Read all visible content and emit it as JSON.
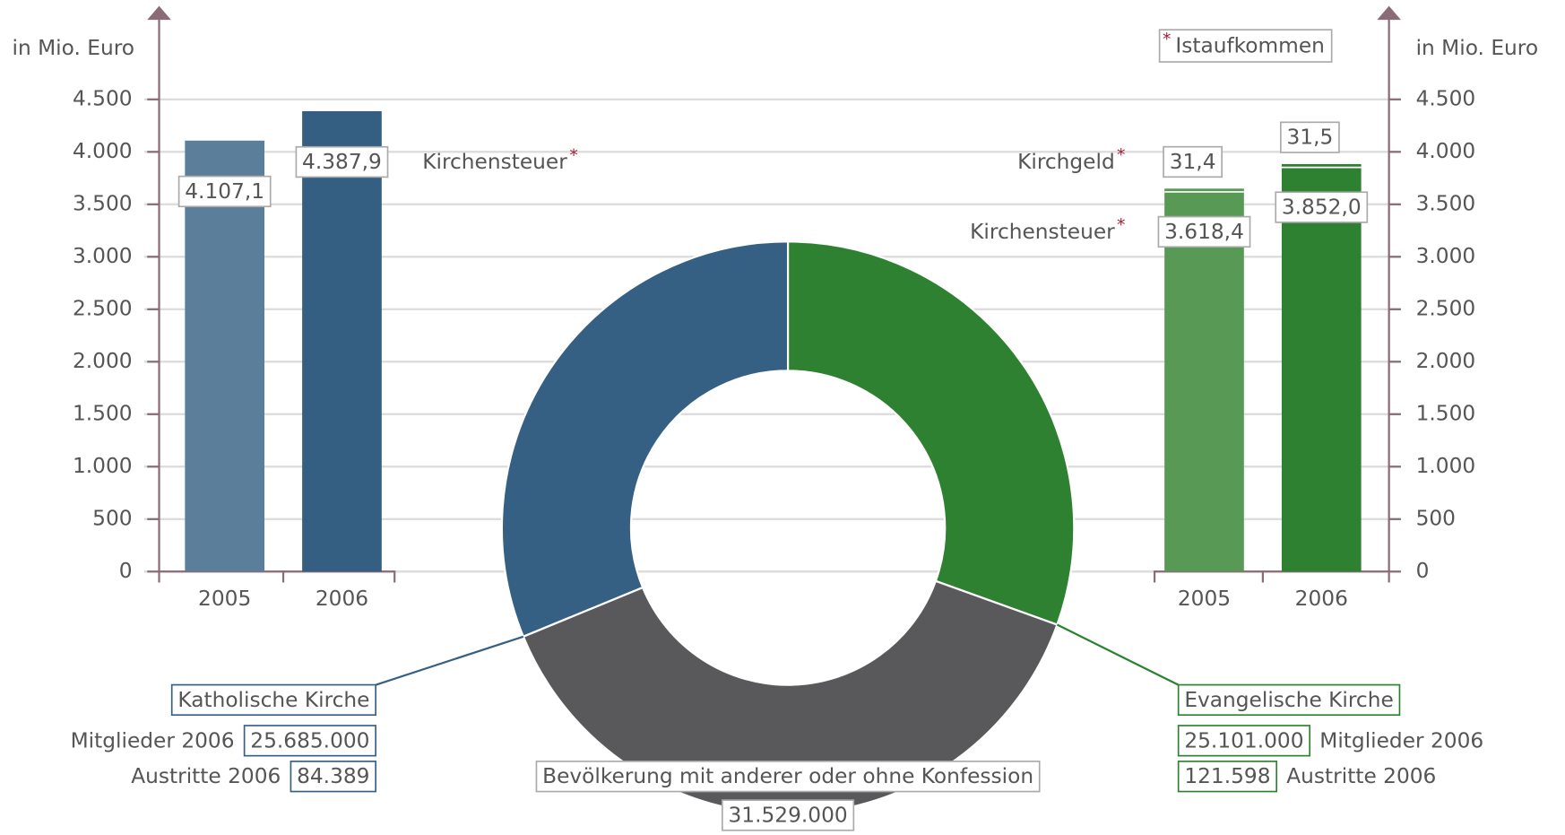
{
  "note": {
    "marker": "*",
    "text": "Istaufkommen"
  },
  "chart_data": [
    {
      "type": "bar",
      "y_label": "in Mio. Euro",
      "categories": [
        "2005",
        "2006"
      ],
      "series": [
        {
          "name": "Kirchensteuer",
          "colors": [
            "#5b7f9a",
            "#345f82"
          ],
          "values": [
            4107.1,
            4387.9
          ],
          "value_labels": [
            "4.107,1",
            "4.387,9"
          ]
        }
      ],
      "ylim": [
        0,
        4500
      ],
      "yticks": [
        0,
        500,
        {
          "value": 1000,
          "label": "1.000"
        },
        {
          "value": 1500,
          "label": "1.500"
        },
        {
          "value": 2000,
          "label": "2.000"
        },
        {
          "value": 2500,
          "label": "2.500"
        },
        {
          "value": 3000,
          "label": "3.000"
        },
        {
          "value": 3500,
          "label": "3.500"
        },
        {
          "value": 4000,
          "label": "4.000"
        },
        {
          "value": 4500,
          "label": "4.500"
        }
      ],
      "grid": true
    },
    {
      "type": "stacked_bar",
      "y_label": "in Mio. Euro",
      "categories": [
        "2005",
        "2006"
      ],
      "series": [
        {
          "name": "Kirchensteuer",
          "colors": [
            "#589a55",
            "#2e8131"
          ],
          "values": [
            3618.4,
            3852.0
          ],
          "value_labels": [
            "3.618,4",
            "3.852,0"
          ]
        },
        {
          "name": "Kirchgeld",
          "colors": [
            "#589a55",
            "#2e8131"
          ],
          "values": [
            31.4,
            31.5
          ],
          "value_labels": [
            "31,4",
            "31,5"
          ]
        }
      ],
      "ylim": [
        0,
        4500
      ],
      "yticks": [
        0,
        500,
        {
          "value": 1000,
          "label": "1.000"
        },
        {
          "value": 1500,
          "label": "1.500"
        },
        {
          "value": 2000,
          "label": "2.000"
        },
        {
          "value": 2500,
          "label": "2.500"
        },
        {
          "value": 3000,
          "label": "3.000"
        },
        {
          "value": 3500,
          "label": "3.500"
        },
        {
          "value": 4000,
          "label": "4.000"
        },
        {
          "value": 4500,
          "label": "4.500"
        }
      ],
      "grid": true
    },
    {
      "type": "donut",
      "categories": [
        "Katholische Kirche",
        "Evangelische Kirche",
        "Bevölkerung mit anderer oder ohne Konfession"
      ],
      "values": [
        25685000,
        25101000,
        31529000
      ],
      "value_labels": [
        "25.685.000",
        "25.101.000",
        "31.529.000"
      ],
      "colors": [
        "#356084",
        "#2e8131",
        "#59595b"
      ],
      "members_label": "Mitglieder 2006",
      "exits_label": "Austritte 2006",
      "exits": [
        84389,
        121598
      ],
      "exits_labels": [
        "84.389",
        "121.598"
      ]
    }
  ]
}
